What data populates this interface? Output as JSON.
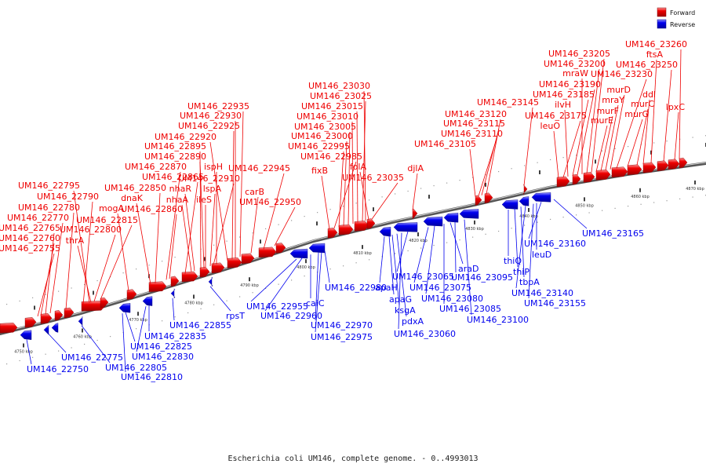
{
  "caption": "Escherichia coli UM146, complete genome. - 0..4993013",
  "legend": [
    {
      "label": "Forward",
      "color": "#ee0000"
    },
    {
      "label": "Reverse",
      "color": "#0000ee"
    }
  ],
  "ticks": [
    "4750 kbp",
    "4760 kbp",
    "4770 kbp",
    "4780 kbp",
    "4790 kbp",
    "4800 kbp",
    "4810 kbp",
    "4820 kbp",
    "4830 kbp",
    "4840 kbp",
    "4850 kbp",
    "4860 kbp",
    "4870 kbp"
  ],
  "forward_genes": [
    "UM146_22755",
    "UM146_22760",
    "UM146_22765",
    "UM146_22770",
    "UM146_22780",
    "UM146_22790",
    "UM146_22795",
    "thrA",
    "UM146_22800",
    "UM146_22815",
    "mogA",
    "dnaK",
    "UM146_22850",
    "UM146_22870",
    "UM146_22860",
    "UM146_22865",
    "nhaA",
    "nhaR",
    "UM146_22895",
    "UM146_22890",
    "ileS",
    "lspA",
    "UM146_22910",
    "ispH",
    "UM146_22920",
    "UM146_22925",
    "UM146_22930",
    "UM146_22935",
    "carB",
    "UM146_22945",
    "UM146_22950",
    "fixB",
    "UM146_22985",
    "UM146_22995",
    "UM146_23000",
    "UM146_23005",
    "UM146_23010",
    "UM146_23015",
    "UM146_23025",
    "UM146_23030",
    "folA",
    "UM146_23035",
    "djlA",
    "UM146_23105",
    "UM146_23110",
    "UM146_23115",
    "UM146_23120",
    "UM146_23145",
    "leuO",
    "UM146_23175",
    "ilvH",
    "UM146_23185",
    "UM146_23190",
    "mraW",
    "UM146_23200",
    "UM146_23205",
    "murE",
    "murF",
    "mraY",
    "murD",
    "UM146_23230",
    "murG",
    "murC",
    "ddl",
    "ftsA",
    "UM146_23250",
    "lpxC",
    "UM146_23260"
  ],
  "reverse_genes": [
    "UM146_22750",
    "UM146_22775",
    "UM146_22805",
    "UM146_22810",
    "UM146_22825",
    "UM146_22830",
    "UM146_22835",
    "UM146_22855",
    "rpsT",
    "UM146_22955",
    "UM146_22960",
    "caiC",
    "UM146_22970",
    "UM146_22975",
    "UM146_22980",
    "apaH",
    "apaG",
    "ksgA",
    "pdxA",
    "UM146_23060",
    "UM146_23065",
    "UM146_23075",
    "UM146_23080",
    "UM146_23085",
    "araD",
    "UM146_23095",
    "UM146_23100",
    "thiQ",
    "thiP",
    "tbpA",
    "UM146_23140",
    "UM146_23155",
    "leuD",
    "UM146_23160",
    "UM146_23165"
  ]
}
